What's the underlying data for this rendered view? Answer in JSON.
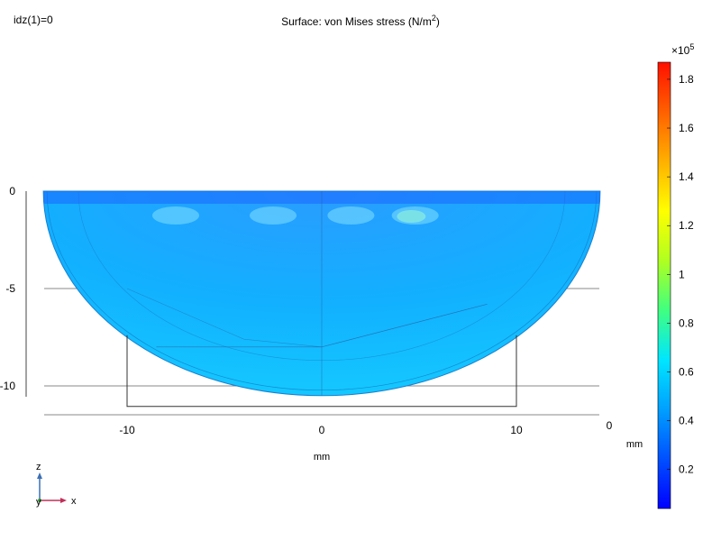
{
  "top_left_label": "idz(1)=0",
  "chart_data": {
    "type": "heatmap",
    "title": "Surface: von Mises stress (N/m",
    "title_sup": "2",
    "title_close": ")",
    "xlabel": "mm",
    "zlabel": "mm",
    "x_ticks": [
      "-10",
      "0",
      "10"
    ],
    "x_tick_values": [
      -10,
      0,
      10
    ],
    "z_ticks": [
      "0",
      "-5",
      "-10"
    ],
    "z_tick_values": [
      0,
      -5,
      -10
    ],
    "xlim": [
      -14.3,
      14.3
    ],
    "zlim": [
      -11.5,
      0
    ],
    "y_axis_label": "0",
    "geometry": {
      "shape": "half-ellipse bowl",
      "x_extent": [
        -14.3,
        14.3
      ],
      "depth": 10.5,
      "inner_box_x": [
        -10,
        10
      ],
      "inner_box_bottom": -10.5
    },
    "colorbar": {
      "multiplier_base": "×10",
      "multiplier_exp": "5",
      "tick_labels": [
        "1.8",
        "1.6",
        "1.4",
        "1.2",
        "1",
        "0.8",
        "0.6",
        "0.4",
        "0.2"
      ],
      "tick_values": [
        1.8,
        1.6,
        1.4,
        1.2,
        1.0,
        0.8,
        0.6,
        0.4,
        0.2
      ],
      "range": [
        0.04,
        1.87
      ],
      "colormap": [
        "#0000ff",
        "#0050ff",
        "#00a0ff",
        "#00e6ff",
        "#40ff80",
        "#b0ff20",
        "#ffff00",
        "#ffb000",
        "#ff6000",
        "#ff1000"
      ]
    },
    "field_summary": {
      "dominant_value": 0.5,
      "dominant_color": "#12a8ff",
      "peak_regions_color": "#80e0ff"
    }
  },
  "triad": {
    "z": "z",
    "y": "y",
    "x": "x"
  }
}
